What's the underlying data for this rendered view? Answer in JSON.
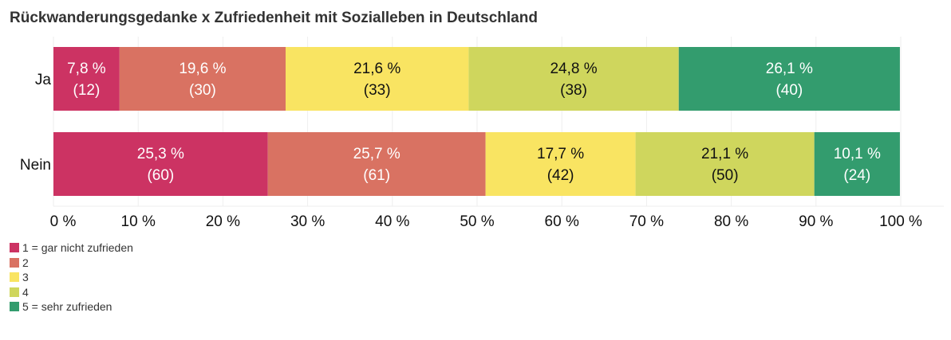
{
  "chart_data": {
    "type": "bar",
    "orientation": "horizontal",
    "stacked": true,
    "normalized": true,
    "title": "Rückwanderungsgedanke x Zufriedenheit mit Sozialleben in Deutschland",
    "xlabel": "",
    "ylabel": "",
    "xlim": [
      0,
      100
    ],
    "x_ticks": [
      0,
      10,
      20,
      30,
      40,
      50,
      60,
      70,
      80,
      90,
      100
    ],
    "x_tick_labels": [
      "0 %",
      "10 %",
      "20 %",
      "30 %",
      "40 %",
      "50 %",
      "60 %",
      "70 %",
      "80 %",
      "90 %",
      "100 %"
    ],
    "grid": true,
    "legend_position": "bottom-left",
    "categories": [
      "Ja",
      "Nein"
    ],
    "series": [
      {
        "name": "1 = gar nicht zufrieden",
        "color": "#CC3363",
        "label_color": "#ffffff",
        "values": [
          7.8,
          25.3
        ],
        "counts": [
          12,
          60
        ],
        "labels": [
          "7,8 %",
          "25,3 %"
        ],
        "count_labels": [
          "(12)",
          "(60)"
        ]
      },
      {
        "name": "2",
        "color": "#D97262",
        "label_color": "#ffffff",
        "values": [
          19.6,
          25.7
        ],
        "counts": [
          30,
          61
        ],
        "labels": [
          "19,6 %",
          "25,7 %"
        ],
        "count_labels": [
          "(30)",
          "(61)"
        ]
      },
      {
        "name": "3",
        "color": "#F9E462",
        "label_color": "#111111",
        "values": [
          21.6,
          17.7
        ],
        "counts": [
          33,
          42
        ],
        "labels": [
          "21,6 %",
          "17,7 %"
        ],
        "count_labels": [
          "(33)",
          "(42)"
        ]
      },
      {
        "name": "4",
        "color": "#CFD65D",
        "label_color": "#111111",
        "values": [
          24.8,
          21.1
        ],
        "counts": [
          38,
          50
        ],
        "labels": [
          "24,8 %",
          "21,1 %"
        ],
        "count_labels": [
          "(38)",
          "(50)"
        ]
      },
      {
        "name": "5 = sehr zufrieden",
        "color": "#339C6E",
        "label_color": "#ffffff",
        "values": [
          26.1,
          10.1
        ],
        "counts": [
          40,
          24
        ],
        "labels": [
          "26,1 %",
          "10,1 %"
        ],
        "count_labels": [
          "(40)",
          "(24)"
        ]
      }
    ]
  },
  "colors": {
    "gridline": "#eeeeee",
    "title": "#333333"
  }
}
